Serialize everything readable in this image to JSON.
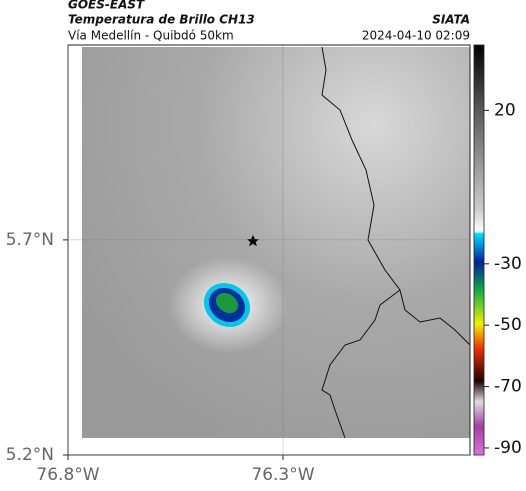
{
  "header": {
    "satellite": "GOES-EAST",
    "product": "Temperatura de Brillo CH13",
    "region": "Vía Medellín - Quibdó 50km",
    "source": "SIATA",
    "datetime": "2024-04-10 02:09"
  },
  "map": {
    "xlim": [
      -76.8,
      -75.865
    ],
    "ylim": [
      5.2,
      6.153
    ],
    "xticks": [
      {
        "value": -76.8,
        "label": "76.8°W"
      },
      {
        "value": -76.3,
        "label": "76.3°W"
      }
    ],
    "yticks": [
      {
        "value": 5.7,
        "label": "5.7°N"
      },
      {
        "value": 5.2,
        "label": "5.2°N"
      }
    ]
  },
  "colorbar": {
    "clim": [
      -92.3,
      41.3
    ],
    "ticks": [
      20,
      -30,
      -50,
      -70,
      -90
    ]
  }
}
